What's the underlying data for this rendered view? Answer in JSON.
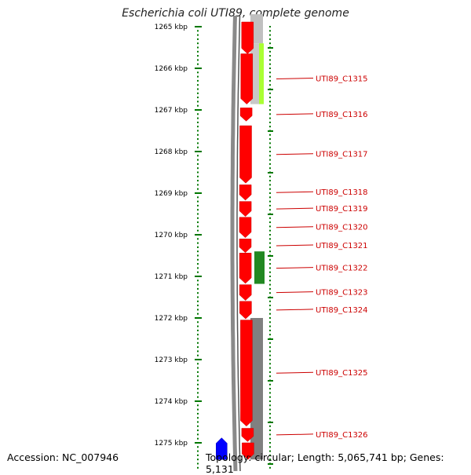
{
  "title": "Escherichia coli UTI89, complete genome",
  "footer": {
    "accession": "Accession: NC_007946",
    "topology": "Topology: circular; Length: 5,065,741 bp; Genes: 5,131"
  },
  "colors": {
    "forward_gene": "#ff0000",
    "reverse_gene": "#0000ff",
    "tick": "#007700",
    "label": "#cc0000",
    "backbone": "#888888"
  },
  "axis": {
    "unit": "kbp",
    "ticks": [
      {
        "value": 1265,
        "label": "1265 kbp"
      },
      {
        "value": 1266,
        "label": "1266 kbp"
      },
      {
        "value": 1267,
        "label": "1267 kbp"
      },
      {
        "value": 1268,
        "label": "1268 kbp"
      },
      {
        "value": 1269,
        "label": "1269 kbp"
      },
      {
        "value": 1270,
        "label": "1270 kbp"
      },
      {
        "value": 1271,
        "label": "1271 kbp"
      },
      {
        "value": 1272,
        "label": "1272 kbp"
      },
      {
        "value": 1273,
        "label": "1273 kbp"
      },
      {
        "value": 1274,
        "label": "1274 kbp"
      },
      {
        "value": 1275,
        "label": "1275 kbp"
      }
    ]
  },
  "genes": [
    {
      "name": "",
      "start": 1264.7,
      "end": 1265.65,
      "strand": "+"
    },
    {
      "name": "UTI89_C1315",
      "start": 1265.65,
      "end": 1266.86,
      "strand": "+"
    },
    {
      "name": "UTI89_C1316",
      "start": 1266.95,
      "end": 1267.27,
      "strand": "+"
    },
    {
      "name": "UTI89_C1317",
      "start": 1267.38,
      "end": 1268.76,
      "strand": "+"
    },
    {
      "name": "UTI89_C1318",
      "start": 1268.8,
      "end": 1269.17,
      "strand": "+"
    },
    {
      "name": "UTI89_C1319",
      "start": 1269.2,
      "end": 1269.56,
      "strand": "+"
    },
    {
      "name": "UTI89_C1320",
      "start": 1269.58,
      "end": 1270.07,
      "strand": "+"
    },
    {
      "name": "UTI89_C1321",
      "start": 1270.1,
      "end": 1270.43,
      "strand": "+"
    },
    {
      "name": "UTI89_C1322",
      "start": 1270.44,
      "end": 1271.17,
      "strand": "+"
    },
    {
      "name": "UTI89_C1323",
      "start": 1271.2,
      "end": 1271.58,
      "strand": "+"
    },
    {
      "name": "UTI89_C1324",
      "start": 1271.6,
      "end": 1272.02,
      "strand": "+"
    },
    {
      "name": "UTI89_C1325",
      "start": 1272.05,
      "end": 1274.6,
      "strand": "+"
    },
    {
      "name": "UTI89_C1326",
      "start": 1274.65,
      "end": 1274.97,
      "strand": "+"
    },
    {
      "name": "",
      "start": 1275.0,
      "end": 1275.4,
      "strand": "+"
    },
    {
      "name": "",
      "start": 1274.88,
      "end": 1275.4,
      "strand": "-"
    }
  ],
  "gc_blocks": [
    {
      "start": 1264.7,
      "end": 1265.4,
      "color": "#c0c0c0"
    },
    {
      "start": 1265.4,
      "end": 1266.86,
      "color": "#c8c8c8"
    },
    {
      "start": 1265.4,
      "end": 1266.86,
      "color": "#aaff33"
    },
    {
      "start": 1270.4,
      "end": 1271.18,
      "color": "#228822"
    },
    {
      "start": 1272.0,
      "end": 1275.4,
      "color": "#808080"
    }
  ]
}
